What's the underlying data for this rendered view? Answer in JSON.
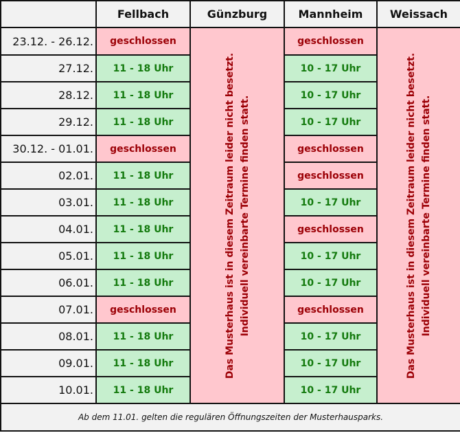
{
  "header": {
    "corner": "",
    "locations": [
      "Fellbach",
      "Günzburg",
      "Mannheim",
      "Weissach"
    ]
  },
  "merged_note": {
    "line1": "Das Musterhaus ist in diesem Zeitraum leider nicht besetzt.",
    "line2": "Individuell vereinbarte Termine finden statt."
  },
  "rows": [
    {
      "date": "23.12. - 26.12.",
      "fellbach": "geschlossen",
      "fellbach_status": "closed",
      "mannheim": "geschlossen",
      "mannheim_status": "closed"
    },
    {
      "date": "27.12.",
      "fellbach": "11 - 18 Uhr",
      "fellbach_status": "open",
      "mannheim": "10 - 17 Uhr",
      "mannheim_status": "open"
    },
    {
      "date": "28.12.",
      "fellbach": "11 - 18 Uhr",
      "fellbach_status": "open",
      "mannheim": "10 - 17 Uhr",
      "mannheim_status": "open"
    },
    {
      "date": "29.12.",
      "fellbach": "11 - 18 Uhr",
      "fellbach_status": "open",
      "mannheim": "10 - 17 Uhr",
      "mannheim_status": "open"
    },
    {
      "date": "30.12. - 01.01.",
      "fellbach": "geschlossen",
      "fellbach_status": "closed",
      "mannheim": "geschlossen",
      "mannheim_status": "closed"
    },
    {
      "date": "02.01.",
      "fellbach": "11 - 18 Uhr",
      "fellbach_status": "open",
      "mannheim": "geschlossen",
      "mannheim_status": "closed"
    },
    {
      "date": "03.01.",
      "fellbach": "11 - 18 Uhr",
      "fellbach_status": "open",
      "mannheim": "10 - 17 Uhr",
      "mannheim_status": "open"
    },
    {
      "date": "04.01.",
      "fellbach": "11 - 18 Uhr",
      "fellbach_status": "open",
      "mannheim": "geschlossen",
      "mannheim_status": "closed"
    },
    {
      "date": "05.01.",
      "fellbach": "11 - 18 Uhr",
      "fellbach_status": "open",
      "mannheim": "10 - 17 Uhr",
      "mannheim_status": "open"
    },
    {
      "date": "06.01.",
      "fellbach": "11 - 18 Uhr",
      "fellbach_status": "open",
      "mannheim": "10 - 17 Uhr",
      "mannheim_status": "open"
    },
    {
      "date": "07.01.",
      "fellbach": "geschlossen",
      "fellbach_status": "closed",
      "mannheim": "geschlossen",
      "mannheim_status": "closed"
    },
    {
      "date": "08.01.",
      "fellbach": "11 - 18 Uhr",
      "fellbach_status": "open",
      "mannheim": "10 - 17 Uhr",
      "mannheim_status": "open"
    },
    {
      "date": "09.01.",
      "fellbach": "11 - 18 Uhr",
      "fellbach_status": "open",
      "mannheim": "10 - 17 Uhr",
      "mannheim_status": "open"
    },
    {
      "date": "10.01.",
      "fellbach": "11 - 18 Uhr",
      "fellbach_status": "open",
      "mannheim": "10 - 17 Uhr",
      "mannheim_status": "open"
    }
  ],
  "footer": {
    "note": "Ab dem 11.01. gelten die regulären Öffnungszeiten der Musterhausparks."
  },
  "colors": {
    "open_bg": "#c6efce",
    "open_text": "#137a0d",
    "closed_bg": "#ffc7ce",
    "closed_text": "#9c0006",
    "header_bg": "#f2f2f2"
  }
}
